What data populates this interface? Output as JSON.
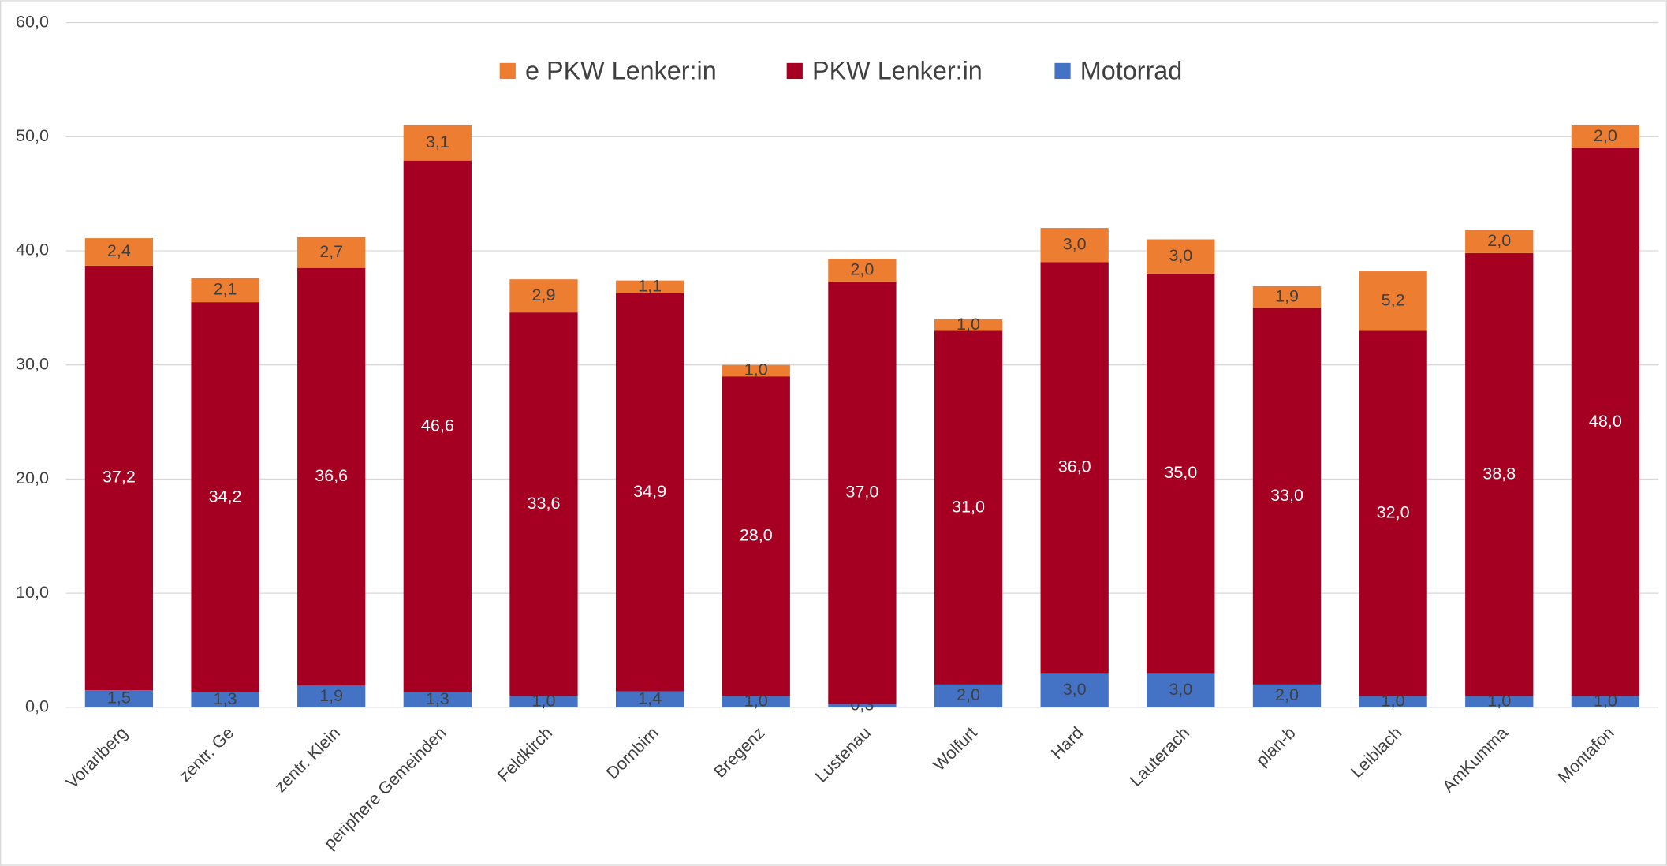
{
  "chart_data": {
    "type": "bar",
    "stacked": true,
    "categories": [
      "Vorarlberg",
      "zentr. Ge",
      "zentr. Klein",
      "periphere Gemeinden",
      "Feldkirch",
      "Dornbirn",
      "Bregenz",
      "Lustenau",
      "Wolfurt",
      "Hard",
      "Lauterach",
      "plan-b",
      "Leiblach",
      "AmKumma",
      "Montafon"
    ],
    "series": [
      {
        "name": "Motorrad",
        "color": "#4472c4",
        "values": [
          1.5,
          1.3,
          1.9,
          1.3,
          1.0,
          1.4,
          1.0,
          0.3,
          2.0,
          3.0,
          3.0,
          2.0,
          1.0,
          1.0,
          1.0
        ],
        "value_labels": [
          "1,5",
          "1,3",
          "1,9",
          "1,3",
          "1,0",
          "1,4",
          "1,0",
          "0,3",
          "2,0",
          "3,0",
          "3,0",
          "2,0",
          "1,0",
          "1,0",
          "1,0"
        ]
      },
      {
        "name": "PKW Lenker:in",
        "color": "#a50021",
        "values": [
          37.2,
          34.2,
          36.6,
          46.6,
          33.6,
          34.9,
          28.0,
          37.0,
          31.0,
          36.0,
          35.0,
          33.0,
          32.0,
          38.8,
          48.0
        ],
        "value_labels": [
          "37,2",
          "34,2",
          "36,6",
          "46,6",
          "33,6",
          "34,9",
          "28,0",
          "37,0",
          "31,0",
          "36,0",
          "35,0",
          "33,0",
          "32,0",
          "38,8",
          "48,0"
        ]
      },
      {
        "name": "e PKW Lenker:in",
        "color": "#ed7d31",
        "values": [
          2.4,
          2.1,
          2.7,
          3.1,
          2.9,
          1.1,
          1.0,
          2.0,
          1.0,
          3.0,
          3.0,
          1.9,
          5.2,
          2.0,
          2.0
        ],
        "value_labels": [
          "2,4",
          "2,1",
          "2,7",
          "3,1",
          "2,9",
          "1,1",
          "1,0",
          "2,0",
          "1,0",
          "3,0",
          "3,0",
          "1,9",
          "5,2",
          "2,0",
          "2,0"
        ]
      }
    ],
    "ylim": [
      0,
      60
    ],
    "yticks": [
      {
        "value": 0,
        "label": "0,0"
      },
      {
        "value": 10,
        "label": "10,0"
      },
      {
        "value": 20,
        "label": "20,0"
      },
      {
        "value": 30,
        "label": "30,0"
      },
      {
        "value": 40,
        "label": "40,0"
      },
      {
        "value": 50,
        "label": "50,0"
      },
      {
        "value": 60,
        "label": "60,0"
      }
    ],
    "grid": true,
    "legend": "top"
  }
}
